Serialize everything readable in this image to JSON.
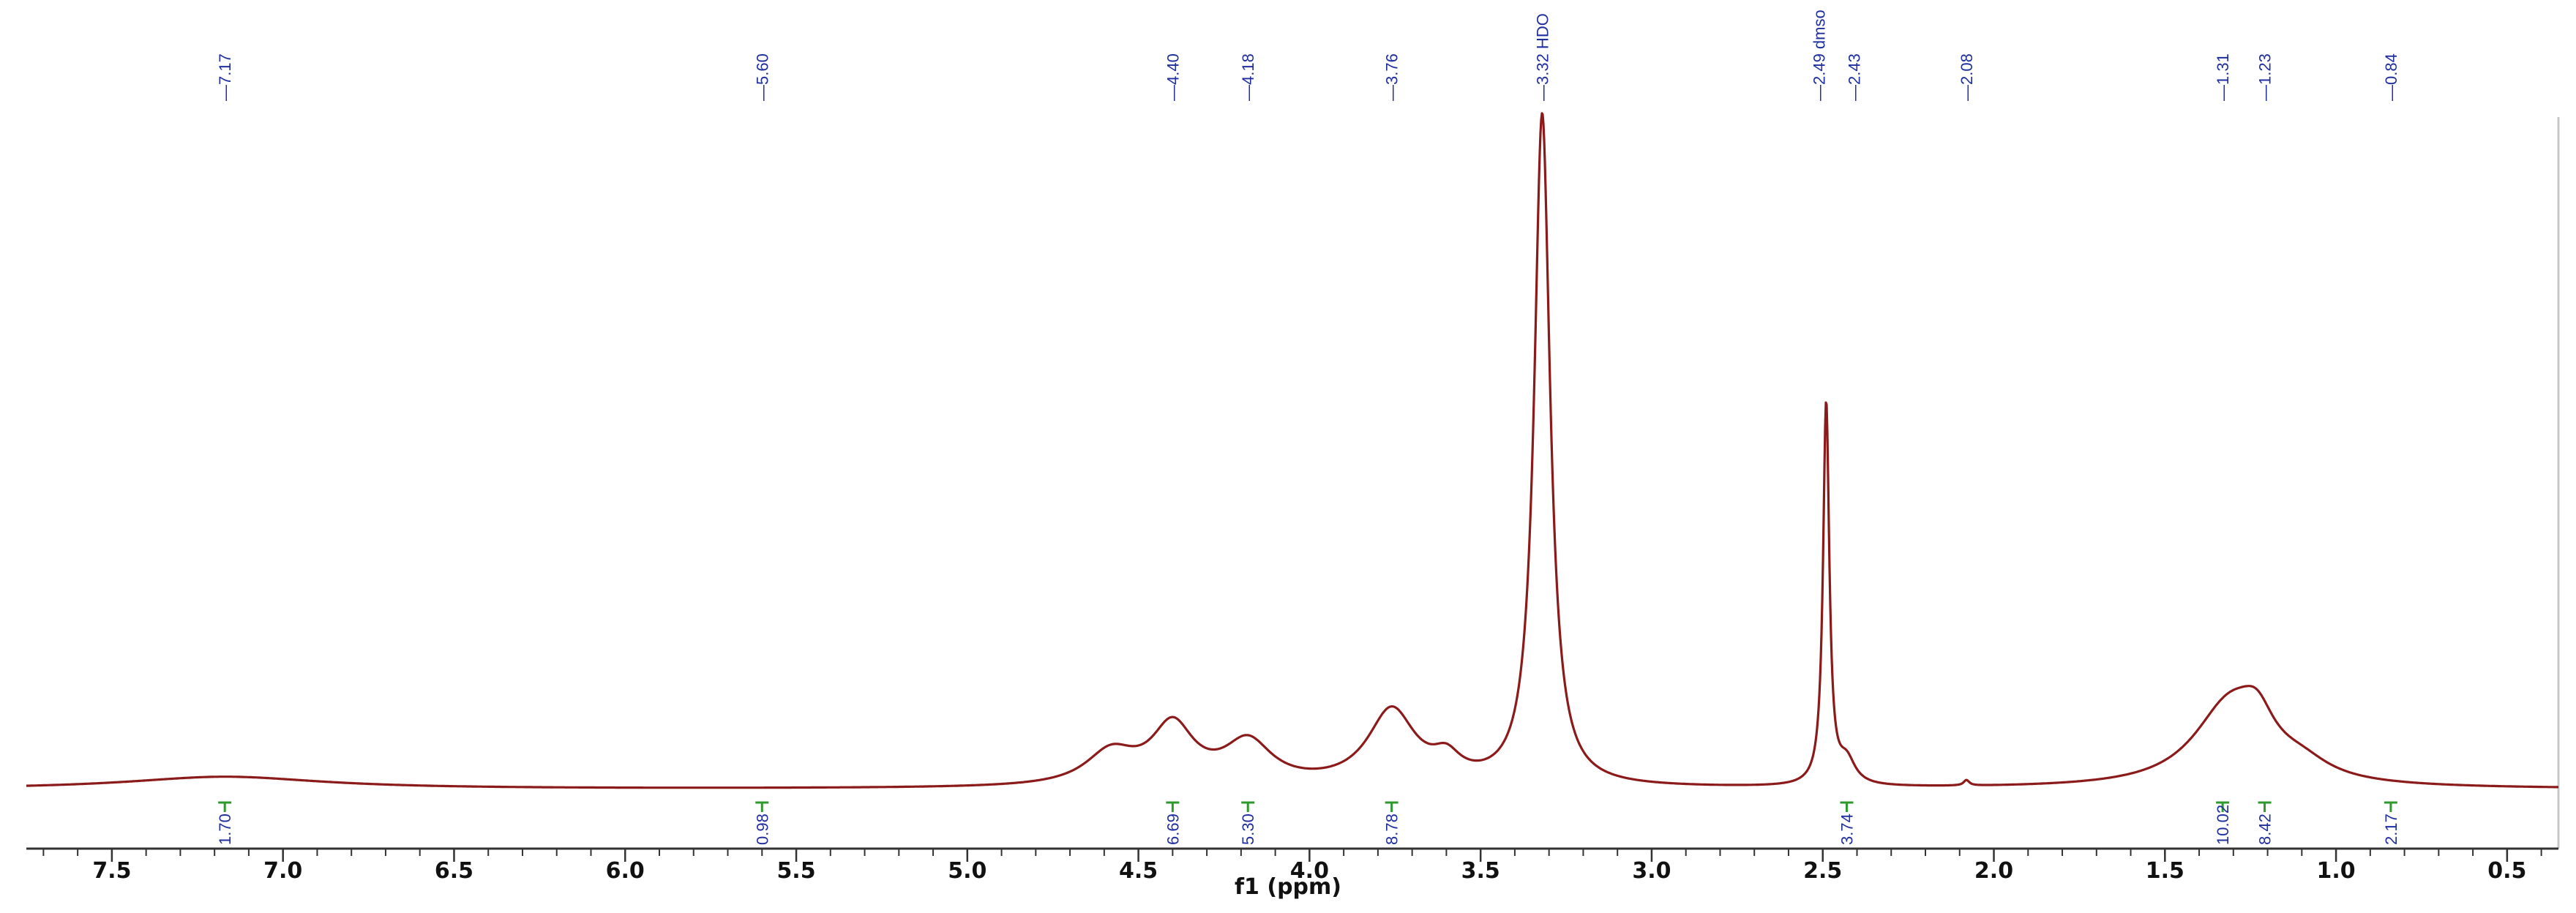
{
  "colors": {
    "spectrum": "#8b1a1a",
    "peak_labels": "#1f2f9e",
    "integral_marks": "#2e9a2e",
    "axis": "#333333",
    "right_frame": "#c8c8c8"
  },
  "chart_data": {
    "type": "line",
    "title": "",
    "xlabel": "f1 (ppm)",
    "ylabel": "",
    "x_reversed": true,
    "xlim": [
      7.75,
      0.35
    ],
    "ylim": [
      0,
      1
    ],
    "x_ticks": [
      7.5,
      7.0,
      6.5,
      6.0,
      5.5,
      5.0,
      4.5,
      4.0,
      3.5,
      3.0,
      2.5,
      2.0,
      1.5,
      1.0,
      0.5
    ],
    "x_tick_labels": [
      "7.5",
      "7.0",
      "6.5",
      "6.0",
      "5.5",
      "5.0",
      "4.5",
      "4.0",
      "3.5",
      "3.0",
      "2.5",
      "2.0",
      "1.5",
      "1.0",
      "0.5"
    ],
    "peak_labels": [
      {
        "ppm": 7.17,
        "text": "7.17"
      },
      {
        "ppm": 5.6,
        "text": "5.60"
      },
      {
        "ppm": 4.4,
        "text": "4.40"
      },
      {
        "ppm": 4.18,
        "text": "4.18"
      },
      {
        "ppm": 3.76,
        "text": "3.76"
      },
      {
        "ppm": 3.32,
        "text": "3.32 HDO"
      },
      {
        "ppm": 2.49,
        "text": "2.49 dmso"
      },
      {
        "ppm": 2.43,
        "text": "2.43"
      },
      {
        "ppm": 2.08,
        "text": "2.08"
      },
      {
        "ppm": 1.31,
        "text": "1.31"
      },
      {
        "ppm": 1.23,
        "text": "1.23"
      },
      {
        "ppm": 0.84,
        "text": "0.84"
      }
    ],
    "integrals": [
      {
        "ppm": 7.17,
        "value": "1.70"
      },
      {
        "ppm": 5.6,
        "value": "0.98"
      },
      {
        "ppm": 4.4,
        "value": "6.69"
      },
      {
        "ppm": 4.18,
        "value": "5.30"
      },
      {
        "ppm": 3.76,
        "value": "8.78"
      },
      {
        "ppm": 2.43,
        "value": "3.74"
      },
      {
        "ppm": 1.31,
        "value": "10.02"
      },
      {
        "ppm": 1.23,
        "value": "8.42"
      },
      {
        "ppm": 0.84,
        "value": "2.17"
      }
    ],
    "baseline": 0.012,
    "peaks": [
      {
        "center": 7.17,
        "height": 0.018,
        "width": 0.35
      },
      {
        "center": 4.58,
        "height": 0.048,
        "width": 0.09
      },
      {
        "center": 4.4,
        "height": 0.085,
        "width": 0.075
      },
      {
        "center": 4.18,
        "height": 0.062,
        "width": 0.085
      },
      {
        "center": 3.76,
        "height": 0.11,
        "width": 0.085
      },
      {
        "center": 3.6,
        "height": 0.03,
        "width": 0.05
      },
      {
        "center": 3.32,
        "height": 0.985,
        "width": 0.028
      },
      {
        "center": 2.49,
        "height": 0.56,
        "width": 0.011
      },
      {
        "center": 2.43,
        "height": 0.035,
        "width": 0.03
      },
      {
        "center": 2.08,
        "height": 0.008,
        "width": 0.01
      },
      {
        "center": 1.31,
        "height": 0.12,
        "width": 0.13
      },
      {
        "center": 1.23,
        "height": 0.05,
        "width": 0.06
      },
      {
        "center": 1.1,
        "height": 0.022,
        "width": 0.1
      }
    ]
  }
}
